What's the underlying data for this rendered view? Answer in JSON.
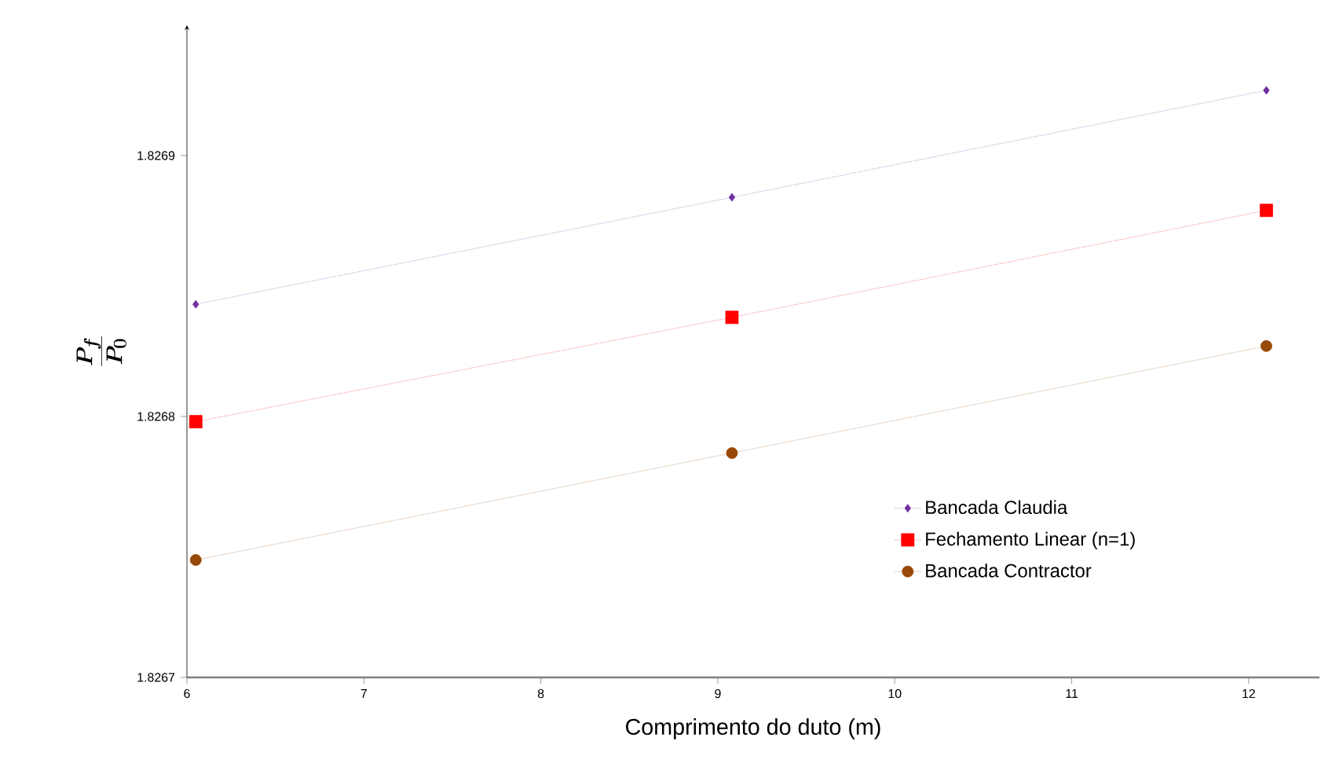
{
  "chart_data": {
    "type": "line",
    "xlabel": "Comprimento  do duto (m)",
    "ylabel": "\\frac{P_f}{P_0}",
    "xlim": [
      6,
      12.4
    ],
    "xticks": [
      6,
      7,
      8,
      9,
      10,
      11,
      12
    ],
    "ylim": [
      1.8267,
      1.82695
    ],
    "yticks": [
      1.8267,
      1.8268,
      1.8269
    ],
    "grid": false,
    "legend": "bottom right",
    "line_style": "dotted",
    "series": [
      {
        "name": "Bancada Claudia",
        "color": "#7030a0",
        "marker": "diamond",
        "x": [
          6.05,
          9.08,
          12.1
        ],
        "values": [
          1.826843,
          1.826884,
          1.826925
        ]
      },
      {
        "name": "Fechamento Linear (n=1)",
        "color": "#ff0000",
        "marker": "square",
        "x": [
          6.05,
          9.08,
          12.1
        ],
        "values": [
          1.826798,
          1.826838,
          1.826879
        ]
      },
      {
        "name": "Bancada Contractor",
        "color": "#984807",
        "marker": "circle",
        "x": [
          6.05,
          9.08,
          12.1
        ],
        "values": [
          1.826745,
          1.826786,
          1.826827
        ]
      }
    ]
  }
}
